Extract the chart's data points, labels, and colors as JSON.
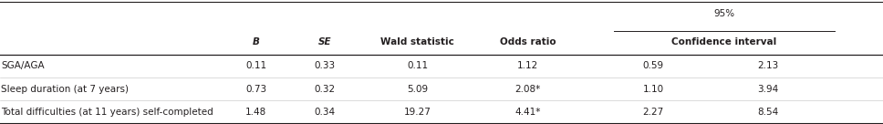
{
  "header1": "95%",
  "header2_ci": "Confidence interval",
  "header2_b": "B",
  "header2_se": "SE",
  "header2_wald": "Wald statistic",
  "header2_or": "Odds ratio",
  "rows": [
    {
      "label": "SGA/AGA",
      "B": "0.11",
      "SE": "0.33",
      "Wald": "0.11",
      "OR": "1.12",
      "CI_low": "0.59",
      "CI_high": "2.13"
    },
    {
      "label": "Sleep duration (at 7 years)",
      "B": "0.73",
      "SE": "0.32",
      "Wald": "5.09",
      "OR": "2.08*",
      "CI_low": "1.10",
      "CI_high": "3.94"
    },
    {
      "label": "Total difficulties (at 11 years) self-completed",
      "B": "1.48",
      "SE": "0.34",
      "Wald": "19.27",
      "OR": "4.41*",
      "CI_low": "2.27",
      "CI_high": "8.54"
    }
  ],
  "col_x": {
    "label": 0.001,
    "B": 0.29,
    "SE": 0.368,
    "Wald": 0.473,
    "OR": 0.598,
    "CI_low": 0.74,
    "CI_high": 0.87
  },
  "background_color": "#ffffff",
  "text_color": "#231f20",
  "line_color": "#231f20",
  "sep_line_color": "#c0c0c0",
  "fontsize": 7.5,
  "header_fontsize": 7.5
}
